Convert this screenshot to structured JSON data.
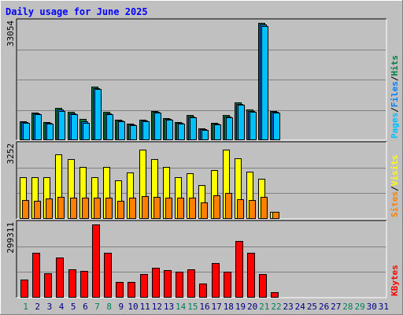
{
  "title": "Daily usage for June 2025",
  "colors": {
    "background": "#C0C0C0",
    "title": "#0000FF",
    "hits": "#008040",
    "files": "#0080FF",
    "pages": "#00C0FF",
    "visits": "#FFFF00",
    "sites": "#FF8000",
    "kbytes": "#FF0000",
    "weekend_day": "#00805C",
    "weekday": "#000080",
    "grid": "#808080"
  },
  "chart_data": [
    {
      "type": "bar",
      "name": "hits-files-pages",
      "max_label": "33054",
      "ylim": [
        0,
        33054
      ],
      "axis_label": [
        {
          "text": "Pages",
          "color": "#00C0FF"
        },
        {
          "text": "/",
          "color": "#000000"
        },
        {
          "text": "Files",
          "color": "#0080FF"
        },
        {
          "text": "/",
          "color": "#000000"
        },
        {
          "text": "Hits",
          "color": "#008040"
        }
      ],
      "series": [
        {
          "name": "Hits",
          "values": [
            5280,
            7800,
            5040,
            9120,
            7920,
            6000,
            14880,
            7920,
            5760,
            4560,
            5760,
            8160,
            6240,
            5040,
            6960,
            3360,
            4800,
            6960,
            10560,
            8640,
            32880,
            8160
          ]
        },
        {
          "name": "Files",
          "values": [
            5040,
            7440,
            4800,
            8640,
            7560,
            5280,
            14640,
            7440,
            5520,
            4320,
            5520,
            7920,
            6000,
            4800,
            6720,
            3120,
            4560,
            6720,
            10080,
            8160,
            32400,
            7920
          ]
        },
        {
          "name": "Pages",
          "values": [
            4800,
            7200,
            4560,
            8160,
            7200,
            4800,
            14400,
            7200,
            5280,
            4080,
            5280,
            7680,
            5760,
            4560,
            6480,
            2880,
            4320,
            6480,
            9840,
            7920,
            31920,
            7680
          ]
        }
      ]
    },
    {
      "type": "bar",
      "name": "visits-sites",
      "max_label": "3252",
      "ylim": [
        0,
        3252
      ],
      "axis_label": [
        {
          "text": "Sites",
          "color": "#FF8000"
        },
        {
          "text": "/",
          "color": "#000000"
        },
        {
          "text": "Visits",
          "color": "#FFFF00"
        }
      ],
      "series": [
        {
          "name": "Visits",
          "values": [
            1820,
            1820,
            1820,
            2840,
            2630,
            2290,
            1820,
            2290,
            1710,
            2040,
            3050,
            2630,
            2290,
            1820,
            1990,
            1500,
            2140,
            3050,
            2680,
            2090,
            1780,
            320
          ]
        },
        {
          "name": "Sites",
          "values": [
            830,
            800,
            900,
            980,
            920,
            920,
            920,
            920,
            780,
            930,
            990,
            960,
            920,
            920,
            940,
            720,
            1050,
            1150,
            870,
            820,
            970,
            320
          ]
        }
      ]
    },
    {
      "type": "bar",
      "name": "kbytes",
      "max_label": "299311",
      "ylim": [
        0,
        299311
      ],
      "axis_label": [
        {
          "text": "KBytes",
          "color": "#FF0000"
        }
      ],
      "series": [
        {
          "name": "KBytes",
          "values": [
            72000,
            183000,
            100000,
            162000,
            116000,
            108000,
            296000,
            183000,
            65000,
            65000,
            95000,
            120000,
            111000,
            105000,
            114000,
            56000,
            140000,
            105000,
            230000,
            180000,
            95000,
            22000
          ]
        }
      ]
    }
  ],
  "x_axis": {
    "days": [
      "1",
      "2",
      "3",
      "4",
      "5",
      "6",
      "7",
      "8",
      "9",
      "10",
      "11",
      "12",
      "13",
      "14",
      "15",
      "16",
      "17",
      "18",
      "19",
      "20",
      "21",
      "22",
      "23",
      "24",
      "25",
      "26",
      "27",
      "28",
      "29",
      "30",
      "31"
    ],
    "weekend_days": [
      "1",
      "7",
      "8",
      "14",
      "15",
      "21",
      "22",
      "28",
      "29"
    ]
  }
}
